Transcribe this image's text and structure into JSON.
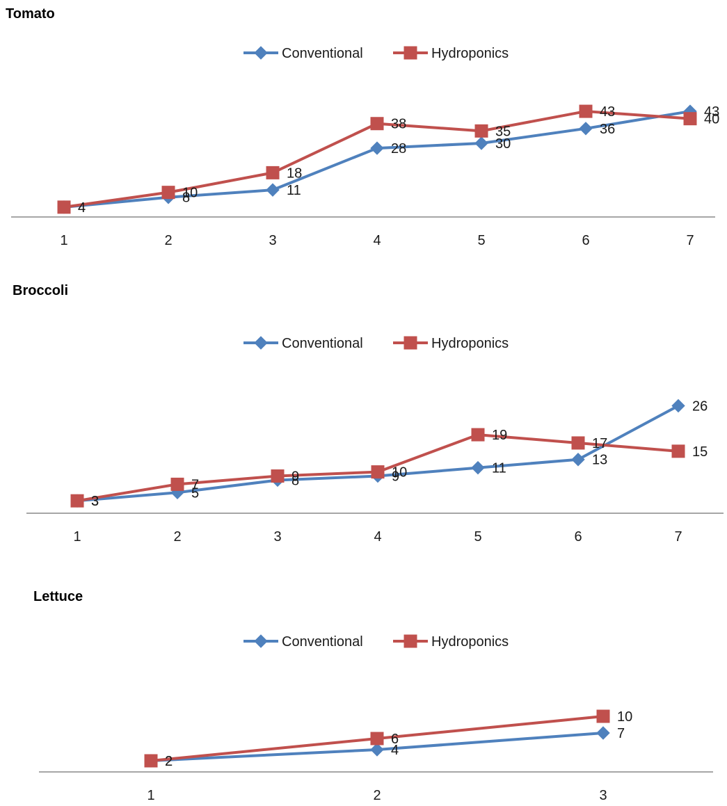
{
  "colors": {
    "conventional": "#4F81BD",
    "hydroponics": "#C0504D",
    "axis": "#888888"
  },
  "chart_data": [
    {
      "type": "line",
      "title": "Tomato",
      "categories": [
        "1",
        "2",
        "3",
        "4",
        "5",
        "6",
        "7"
      ],
      "series": [
        {
          "name": "Conventional",
          "marker": "diamond",
          "values": [
            4,
            8,
            11,
            28,
            30,
            36,
            43
          ]
        },
        {
          "name": "Hydroponics",
          "marker": "square",
          "values": [
            4,
            10,
            18,
            38,
            35,
            43,
            40
          ]
        }
      ],
      "ylim": [
        0,
        60
      ],
      "legend": "top-center",
      "grid": false,
      "data_labels": true
    },
    {
      "type": "line",
      "title": "Broccoli",
      "categories": [
        "1",
        "2",
        "3",
        "4",
        "5",
        "6",
        "7"
      ],
      "series": [
        {
          "name": "Conventional",
          "marker": "diamond",
          "values": [
            3,
            5,
            8,
            9,
            11,
            13,
            26
          ]
        },
        {
          "name": "Hydroponics",
          "marker": "square",
          "values": [
            3,
            7,
            9,
            10,
            19,
            17,
            15
          ]
        }
      ],
      "ylim": [
        0,
        35
      ],
      "legend": "top-center",
      "grid": false,
      "data_labels": true
    },
    {
      "type": "line",
      "title": "Lettuce",
      "categories": [
        "1",
        "2",
        "3"
      ],
      "series": [
        {
          "name": "Conventional",
          "marker": "diamond",
          "values": [
            2,
            4,
            7
          ]
        },
        {
          "name": "Hydroponics",
          "marker": "square",
          "values": [
            2,
            6,
            10
          ]
        }
      ],
      "ylim": [
        0,
        20
      ],
      "legend": "top-center",
      "grid": false,
      "data_labels": true
    }
  ]
}
